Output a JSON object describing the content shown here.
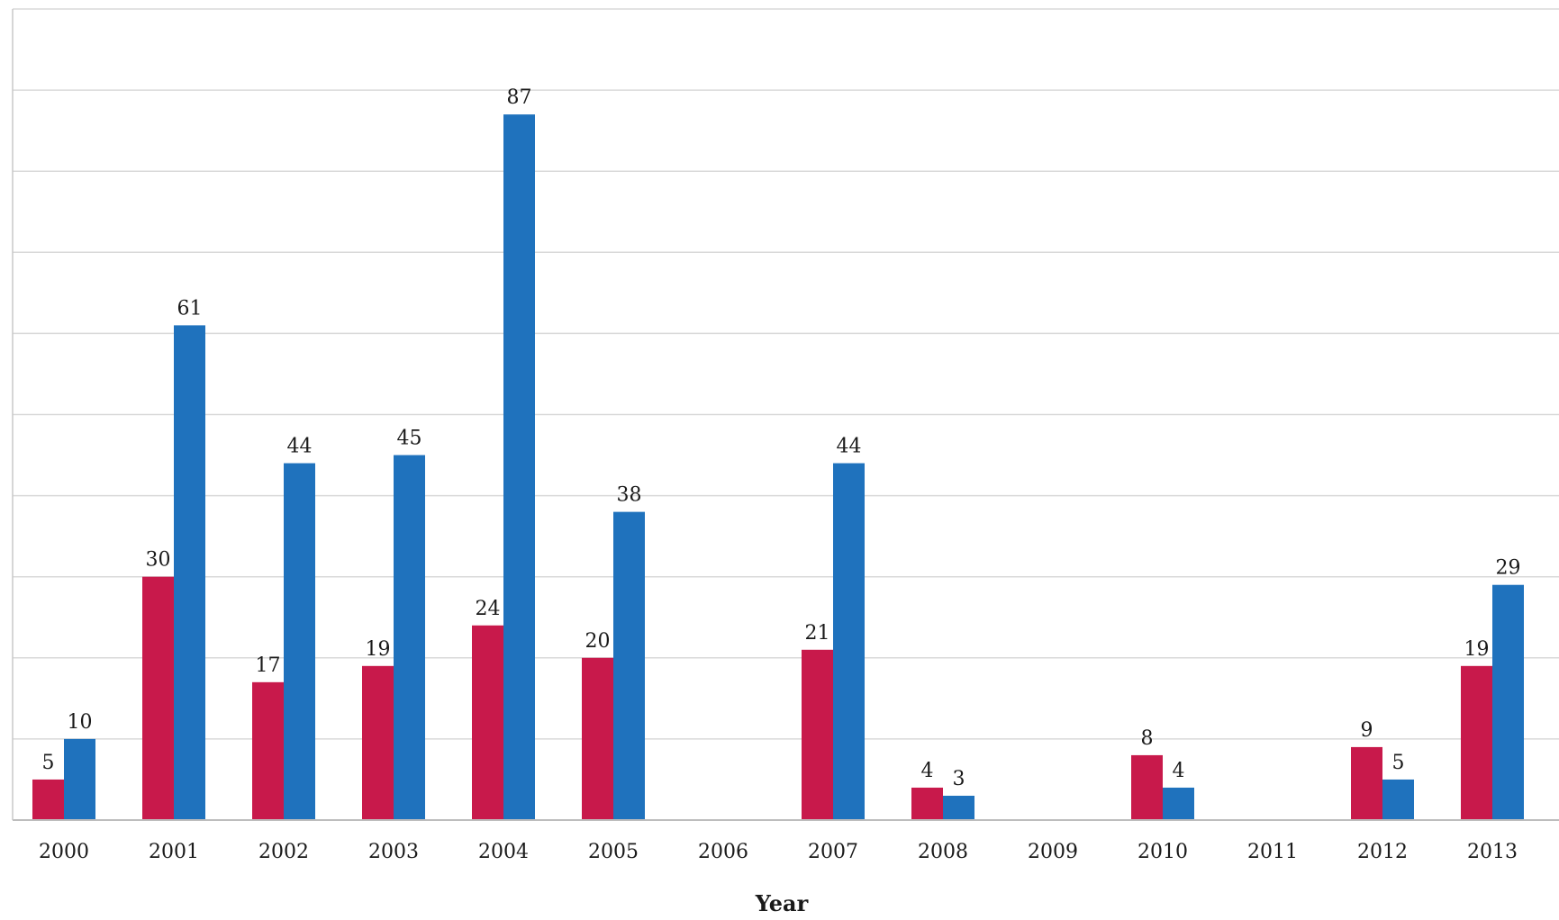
{
  "chart_data": {
    "type": "bar",
    "title": "",
    "xlabel": "Year",
    "ylabel": "",
    "categories": [
      "2000",
      "2001",
      "2002",
      "2003",
      "2004",
      "2005",
      "2006",
      "2007",
      "2008",
      "2009",
      "2010",
      "2011",
      "2012",
      "2013"
    ],
    "series": [
      {
        "values": [
          5,
          30,
          17,
          19,
          24,
          20,
          null,
          21,
          4,
          null,
          8,
          null,
          9,
          19
        ],
        "color": "#c8194b"
      },
      {
        "values": [
          10,
          61,
          44,
          45,
          87,
          38,
          null,
          44,
          3,
          null,
          4,
          null,
          5,
          29
        ],
        "color": "#1f72bd"
      }
    ],
    "ylim": [
      0,
      100
    ],
    "grid": true,
    "legend": "none"
  }
}
